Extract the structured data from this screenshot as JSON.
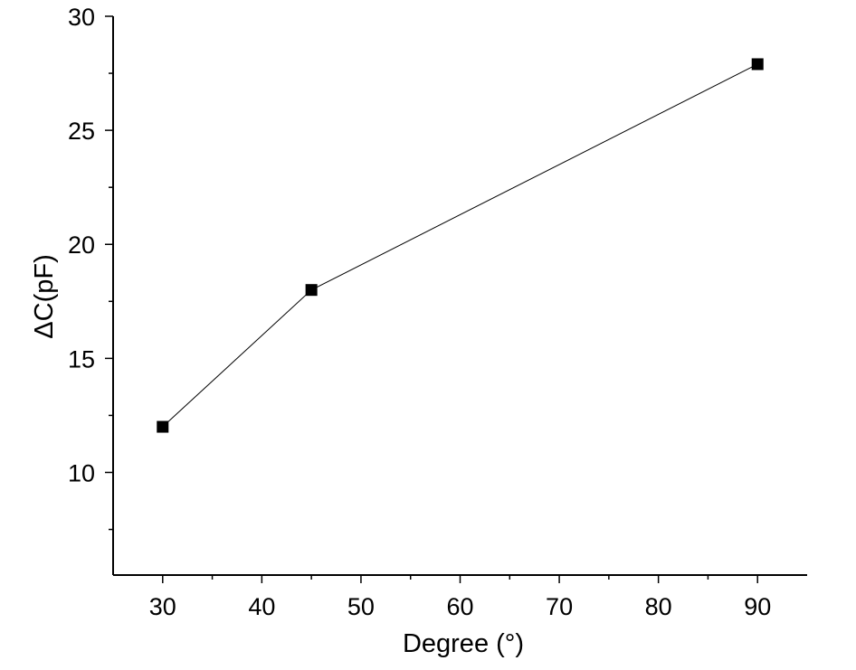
{
  "chart_data": {
    "type": "line",
    "title": "",
    "xlabel": "Degree (°)",
    "ylabel": "ΔC(pF)",
    "xlim": [
      25,
      95
    ],
    "ylim": [
      5.5,
      30
    ],
    "x_ticks": [
      30,
      40,
      50,
      60,
      70,
      80,
      90
    ],
    "x_tick_labels": [
      "30",
      "40",
      "50",
      "60",
      "70",
      "80",
      "90"
    ],
    "y_ticks": [
      10,
      15,
      20,
      25,
      30
    ],
    "y_tick_labels": [
      "10",
      "15",
      "20",
      "25",
      "30"
    ],
    "x_minor_ticks": [
      35,
      45,
      55,
      65,
      75,
      85
    ],
    "y_minor_ticks": [
      7.5,
      12.5,
      17.5,
      22.5,
      27.5
    ],
    "grid": false,
    "legend": "none",
    "series": [
      {
        "x": [
          30,
          45,
          90
        ],
        "values": [
          12.0,
          18.0,
          27.9
        ],
        "marker": "square",
        "color": "#000000"
      }
    ]
  }
}
